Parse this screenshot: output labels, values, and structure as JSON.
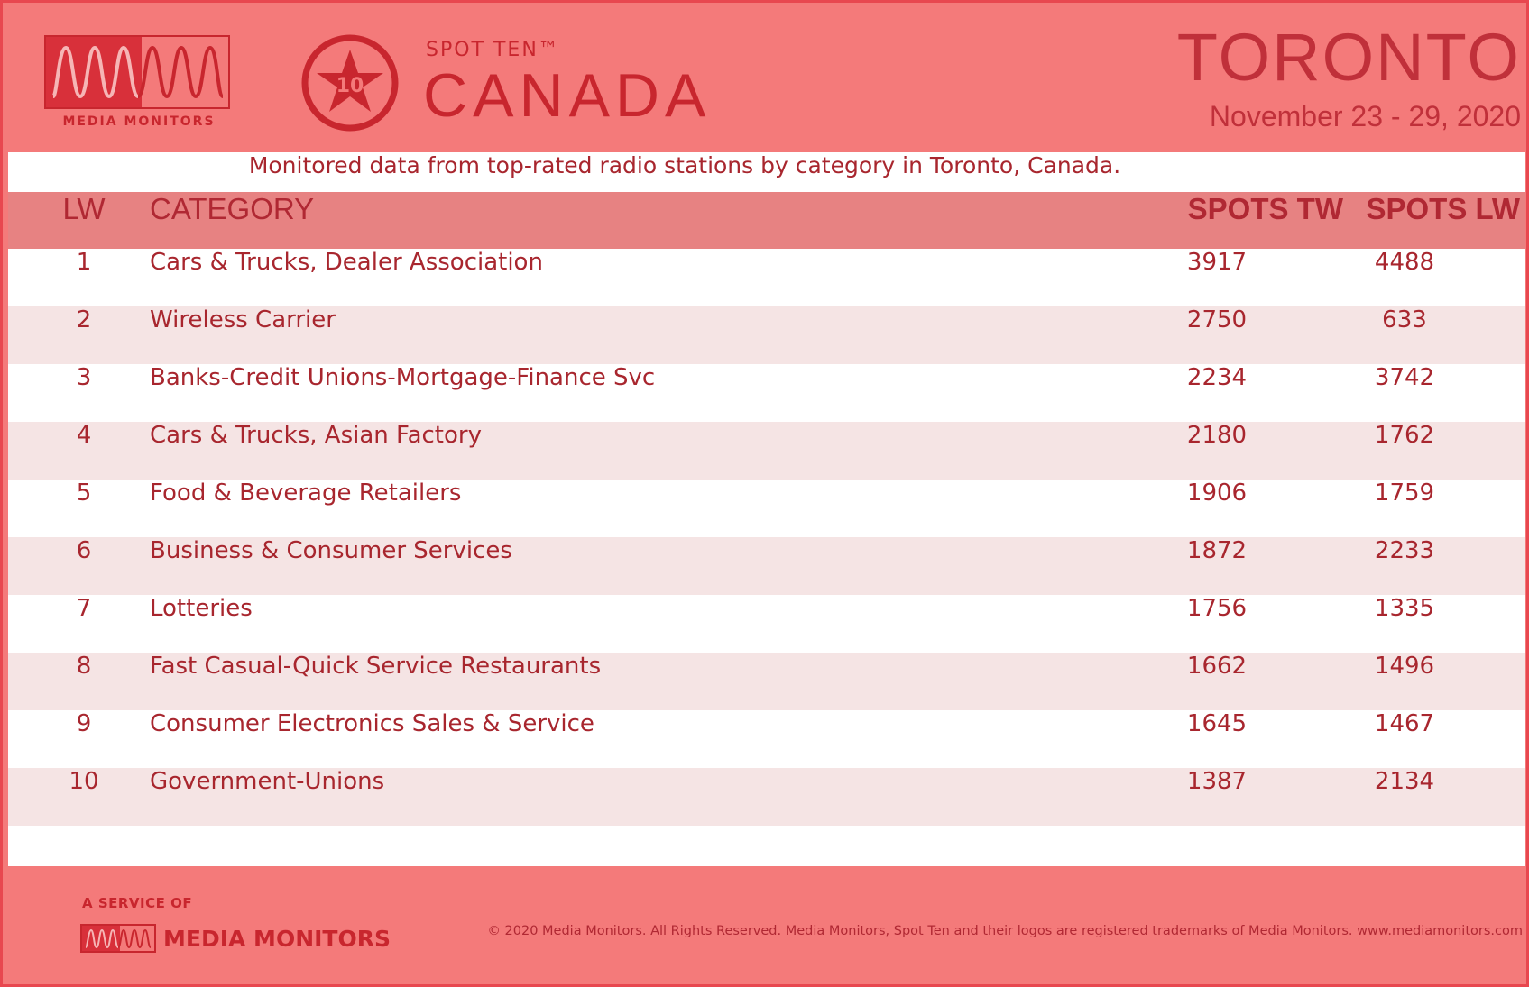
{
  "header": {
    "brand_name": "MEDIA MONITORS",
    "badge_number": "10",
    "product_name": "SPOT TEN™",
    "country": "CANADA",
    "city": "TORONTO",
    "date_range": "November 23 - 29, 2020"
  },
  "subtitle": "Monitored data from top-rated radio stations by category in Toronto, Canada.",
  "table": {
    "columns": {
      "lw": "LW",
      "category": "CATEGORY",
      "spots_tw": "SPOTS TW",
      "spots_lw": "SPOTS LW"
    },
    "rows": [
      {
        "lw": "1",
        "category": "Cars & Trucks, Dealer Association",
        "spots_tw": "3917",
        "spots_lw": "4488"
      },
      {
        "lw": "2",
        "category": "Wireless Carrier",
        "spots_tw": "2750",
        "spots_lw": "633"
      },
      {
        "lw": "3",
        "category": "Banks-Credit Unions-Mortgage-Finance Svc",
        "spots_tw": "2234",
        "spots_lw": "3742"
      },
      {
        "lw": "4",
        "category": "Cars & Trucks, Asian Factory",
        "spots_tw": "2180",
        "spots_lw": "1762"
      },
      {
        "lw": "5",
        "category": "Food & Beverage Retailers",
        "spots_tw": "1906",
        "spots_lw": "1759"
      },
      {
        "lw": "6",
        "category": "Business & Consumer Services",
        "spots_tw": "1872",
        "spots_lw": "2233"
      },
      {
        "lw": "7",
        "category": "Lotteries",
        "spots_tw": "1756",
        "spots_lw": "1335"
      },
      {
        "lw": "8",
        "category": "Fast Casual-Quick Service Restaurants",
        "spots_tw": "1662",
        "spots_lw": "1496"
      },
      {
        "lw": "9",
        "category": "Consumer Electronics Sales & Service",
        "spots_tw": "1645",
        "spots_lw": "1467"
      },
      {
        "lw": "10",
        "category": "Government-Unions",
        "spots_tw": "1387",
        "spots_lw": "2134"
      }
    ]
  },
  "footer": {
    "service_label": "A SERVICE OF",
    "brand_name": "MEDIA MONITORS",
    "copyright": "© 2020 Media Monitors. All Rights Reserved. Media Monitors, Spot Ten and their logos are registered trademarks of Media Monitors. www.mediamonitors.com"
  },
  "colors": {
    "background": "#f47a7a",
    "accent": "#c8262e",
    "header_row": "#e78282",
    "alt_row": "#f5e4e4"
  }
}
